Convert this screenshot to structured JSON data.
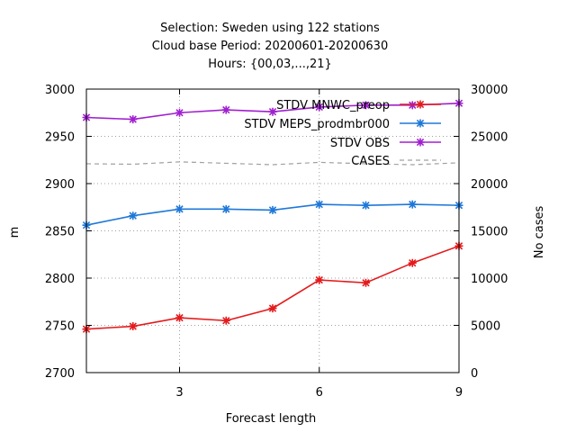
{
  "chart_data": {
    "type": "line",
    "title_lines": [
      "Selection: Sweden using   122 stations",
      "Cloud base   Period: 20200601-20200630",
      "Hours: {00,03,...,21}"
    ],
    "xlabel": "Forecast length",
    "ylabel": "m",
    "y2label": "No cases",
    "xlim": [
      1,
      9
    ],
    "ylim": [
      2700,
      3000
    ],
    "y2lim": [
      0,
      30000
    ],
    "xticks": [
      3,
      6,
      9
    ],
    "yticks": [
      2700,
      2750,
      2800,
      2850,
      2900,
      2950,
      3000
    ],
    "y2ticks": [
      0,
      5000,
      10000,
      15000,
      20000,
      25000,
      30000
    ],
    "grid": true,
    "legend_position": "top-right",
    "x": [
      1,
      2,
      3,
      4,
      5,
      6,
      7,
      8,
      9
    ],
    "series": [
      {
        "name": "STDV MNWC_preop",
        "color": "#e41a1c",
        "axis": "y",
        "marker": "star",
        "values": [
          2746,
          2749,
          2758,
          2755,
          2768,
          2798,
          2795,
          2816,
          2834
        ]
      },
      {
        "name": "STDV MEPS_prodmbr000",
        "color": "#1f78d8",
        "axis": "y",
        "marker": "star",
        "values": [
          2856,
          2866,
          2873,
          2873,
          2872,
          2878,
          2877,
          2878,
          2877
        ]
      },
      {
        "name": "STDV OBS",
        "color": "#a020d0",
        "axis": "y",
        "marker": "star",
        "values": [
          2970,
          2968,
          2975,
          2978,
          2976,
          2981,
          2983,
          2983,
          2985
        ]
      },
      {
        "name": "CASES",
        "color": "#a0a0a0",
        "axis": "y2",
        "marker": "none",
        "dashed": true,
        "values": [
          22100,
          22050,
          22300,
          22150,
          22000,
          22250,
          22100,
          22000,
          22200
        ]
      }
    ]
  }
}
